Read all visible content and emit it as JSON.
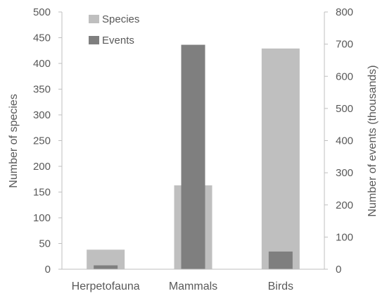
{
  "chart_data": {
    "type": "bar",
    "categories": [
      "Herpetofauna",
      "Mammals",
      "Birds"
    ],
    "series": [
      {
        "name": "Species",
        "axis": "left",
        "color": "#bfbfbf",
        "values": [
          38,
          163,
          429
        ]
      },
      {
        "name": "Events",
        "axis": "right",
        "color": "#7f7f7f",
        "values": [
          12,
          698,
          55
        ]
      }
    ],
    "y_left": {
      "label": "Number of species",
      "ylim": [
        0,
        500
      ],
      "ticks": [
        0,
        50,
        100,
        150,
        200,
        250,
        300,
        350,
        400,
        450,
        500
      ]
    },
    "y_right": {
      "label": "Number of events (thousands)",
      "ylim": [
        0,
        800
      ],
      "ticks": [
        0,
        100,
        200,
        300,
        400,
        500,
        600,
        700,
        800
      ]
    },
    "legend_position": "top-left",
    "grid": false
  }
}
